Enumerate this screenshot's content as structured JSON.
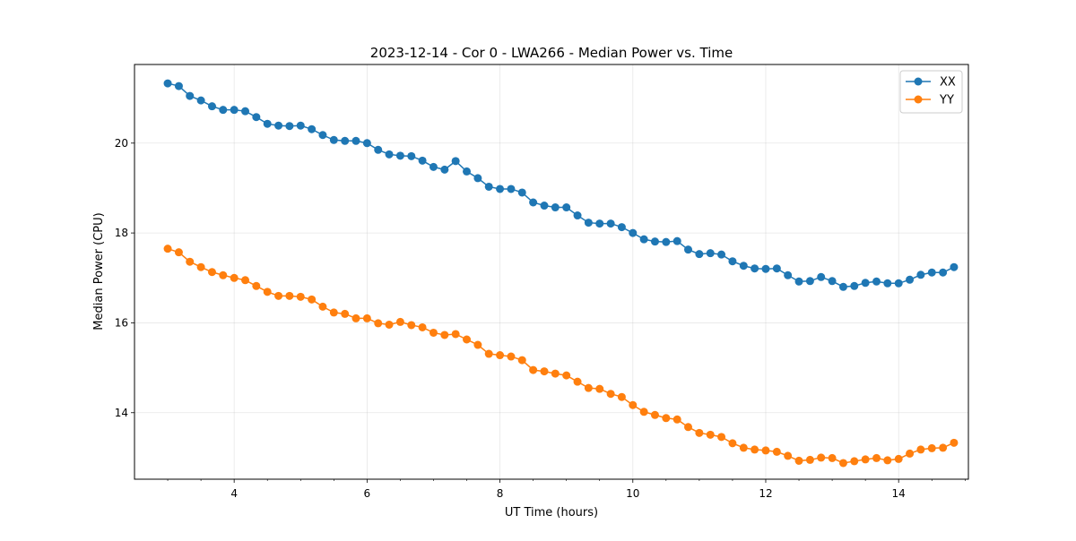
{
  "chart_data": {
    "type": "line",
    "title": "2023-12-14 - Cor 0 - LWA266 - Median Power vs. Time",
    "xlabel": "UT Time (hours)",
    "ylabel": "Median Power (CPU)",
    "xlim": [
      2.5,
      15.05
    ],
    "ylim": [
      12.52,
      21.75
    ],
    "xticks": [
      4,
      6,
      8,
      10,
      12,
      14
    ],
    "yticks": [
      14,
      16,
      18,
      20
    ],
    "grid": true,
    "legend_position": "top-right",
    "x": [
      3.0,
      3.167,
      3.333,
      3.5,
      3.667,
      3.833,
      4.0,
      4.167,
      4.333,
      4.5,
      4.667,
      4.833,
      5.0,
      5.167,
      5.333,
      5.5,
      5.667,
      5.833,
      6.0,
      6.167,
      6.333,
      6.5,
      6.667,
      6.833,
      7.0,
      7.167,
      7.333,
      7.5,
      7.667,
      7.833,
      8.0,
      8.167,
      8.333,
      8.5,
      8.667,
      8.833,
      9.0,
      9.167,
      9.333,
      9.5,
      9.667,
      9.833,
      10.0,
      10.167,
      10.333,
      10.5,
      10.667,
      10.833,
      11.0,
      11.167,
      11.333,
      11.5,
      11.667,
      11.833,
      12.0,
      12.167,
      12.333,
      12.5,
      12.667,
      12.833,
      13.0,
      13.167,
      13.333,
      13.5,
      13.667,
      13.833,
      14.0,
      14.167,
      14.333,
      14.5,
      14.667,
      14.833
    ],
    "series": [
      {
        "name": "XX",
        "color": "#1f77b4",
        "values": [
          21.33,
          21.27,
          21.05,
          20.95,
          20.82,
          20.74,
          20.74,
          20.71,
          20.58,
          20.43,
          20.39,
          20.38,
          20.39,
          20.31,
          20.18,
          20.07,
          20.05,
          20.05,
          20.0,
          19.85,
          19.75,
          19.72,
          19.71,
          19.61,
          19.47,
          19.41,
          19.6,
          19.37,
          19.22,
          19.03,
          18.98,
          18.98,
          18.9,
          18.68,
          18.61,
          18.57,
          18.57,
          18.39,
          18.23,
          18.21,
          18.21,
          18.13,
          18.0,
          17.86,
          17.81,
          17.8,
          17.82,
          17.63,
          17.53,
          17.55,
          17.52,
          17.37,
          17.27,
          17.21,
          17.2,
          17.21,
          17.06,
          16.92,
          16.93,
          17.02,
          16.93,
          16.8,
          16.82,
          16.89,
          16.92,
          16.88,
          16.88,
          16.96,
          17.07,
          17.12,
          17.12,
          17.24
        ]
      },
      {
        "name": "YY",
        "color": "#ff7f0e",
        "values": [
          17.65,
          17.57,
          17.36,
          17.24,
          17.13,
          17.06,
          17.0,
          16.95,
          16.82,
          16.69,
          16.6,
          16.6,
          16.58,
          16.52,
          16.36,
          16.23,
          16.2,
          16.1,
          16.1,
          15.99,
          15.96,
          16.02,
          15.95,
          15.9,
          15.78,
          15.73,
          15.75,
          15.63,
          15.51,
          15.31,
          15.28,
          15.25,
          15.17,
          14.95,
          14.92,
          14.87,
          14.83,
          14.69,
          14.55,
          14.53,
          14.42,
          14.35,
          14.17,
          14.02,
          13.95,
          13.88,
          13.85,
          13.68,
          13.55,
          13.51,
          13.46,
          13.32,
          13.22,
          13.18,
          13.16,
          13.13,
          13.04,
          12.93,
          12.95,
          13.0,
          12.99,
          12.88,
          12.92,
          12.96,
          12.99,
          12.94,
          12.97,
          13.09,
          13.18,
          13.21,
          13.22,
          13.33
        ]
      }
    ]
  }
}
